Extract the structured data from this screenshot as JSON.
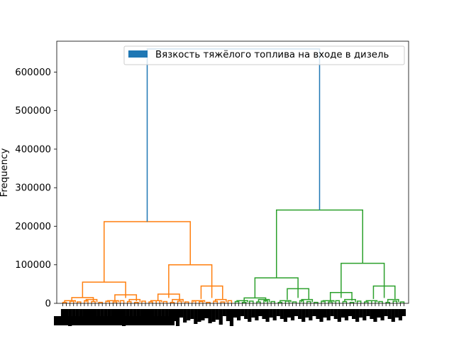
{
  "chart_data": {
    "type": "dendrogram",
    "title": "",
    "xlabel": "",
    "ylabel": "Frequency",
    "ylim": [
      0,
      680000
    ],
    "yticks": [
      0,
      100000,
      200000,
      300000,
      400000,
      500000,
      600000
    ],
    "ytick_labels": [
      "0",
      "100000",
      "200000",
      "300000",
      "400000",
      "500000",
      "600000"
    ],
    "legend": {
      "placement": "top-right",
      "entries": [
        {
          "label": "Вязкость тяжёлого топлива на входе в дизель",
          "color": "#1f77b4"
        }
      ]
    },
    "x_tick_labels_legible": false,
    "leaf_count": 96,
    "clusters": [
      {
        "name": "",
        "color": "#ff7f0e",
        "leaves": [
          0,
          47
        ],
        "height": 212000
      },
      {
        "name": "",
        "color": "#2ca02c",
        "leaves": [
          48,
          95
        ],
        "height": 242000
      }
    ],
    "root_height": 660000,
    "root_color": "#1f77b4",
    "merges": [
      {
        "color": "#ff7f0e",
        "left_leaves": [
          0,
          11
        ],
        "right_leaves": [
          12,
          23
        ],
        "height": 55000
      },
      {
        "color": "#ff7f0e",
        "left_leaves": [
          24,
          35
        ],
        "right_leaves": [
          36,
          47
        ],
        "height": 100000
      },
      {
        "color": "#ff7f0e",
        "left_leaves": [
          0,
          5
        ],
        "right_leaves": [
          6,
          11
        ],
        "height": 15000
      },
      {
        "color": "#ff7f0e",
        "left_leaves": [
          12,
          17
        ],
        "right_leaves": [
          18,
          23
        ],
        "height": 22000
      },
      {
        "color": "#ff7f0e",
        "left_leaves": [
          24,
          29
        ],
        "right_leaves": [
          30,
          35
        ],
        "height": 24000
      },
      {
        "color": "#ff7f0e",
        "left_leaves": [
          36,
          41
        ],
        "right_leaves": [
          42,
          47
        ],
        "height": 45000
      },
      {
        "color": "#2ca02c",
        "left_leaves": [
          48,
          59
        ],
        "right_leaves": [
          60,
          71
        ],
        "height": 66000
      },
      {
        "color": "#2ca02c",
        "left_leaves": [
          72,
          83
        ],
        "right_leaves": [
          84,
          95
        ],
        "height": 104000
      },
      {
        "color": "#2ca02c",
        "left_leaves": [
          48,
          53
        ],
        "right_leaves": [
          54,
          59
        ],
        "height": 14000
      },
      {
        "color": "#2ca02c",
        "left_leaves": [
          60,
          65
        ],
        "right_leaves": [
          66,
          71
        ],
        "height": 38000
      },
      {
        "color": "#2ca02c",
        "left_leaves": [
          72,
          77
        ],
        "right_leaves": [
          78,
          83
        ],
        "height": 28000
      },
      {
        "color": "#2ca02c",
        "left_leaves": [
          84,
          89
        ],
        "right_leaves": [
          90,
          95
        ],
        "height": 45000
      }
    ]
  }
}
